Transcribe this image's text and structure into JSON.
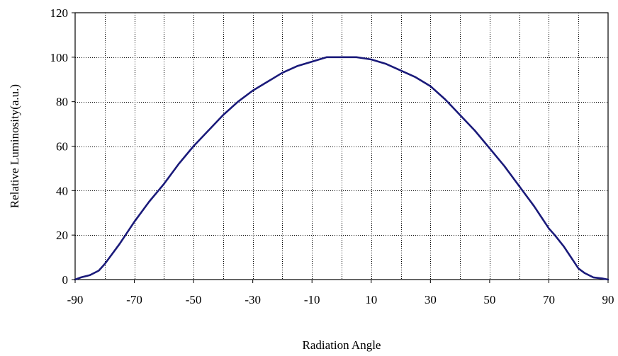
{
  "chart_data": {
    "type": "line",
    "xlabel": "Radiation Angle",
    "ylabel": "Relative Luminosity(a.u.)",
    "xlim": [
      -90,
      90
    ],
    "ylim": [
      0,
      120
    ],
    "xticks": [
      -90,
      -70,
      -50,
      -30,
      -10,
      10,
      30,
      50,
      70,
      90
    ],
    "yticks": [
      0,
      20,
      40,
      60,
      80,
      100,
      120
    ],
    "x_gridlines": [
      -90,
      -80,
      -70,
      -60,
      -50,
      -40,
      -30,
      -20,
      -10,
      0,
      10,
      20,
      30,
      40,
      50,
      60,
      70,
      80,
      90
    ],
    "grid": true,
    "legend": "none",
    "series": [
      {
        "color": "#1a1a7a",
        "x": [
          -90,
          -88,
          -85,
          -82,
          -80,
          -75,
          -70,
          -65,
          -60,
          -55,
          -50,
          -45,
          -40,
          -35,
          -30,
          -25,
          -20,
          -15,
          -10,
          -5,
          0,
          5,
          10,
          15,
          20,
          25,
          30,
          35,
          40,
          45,
          50,
          55,
          60,
          65,
          70,
          72,
          75,
          80,
          82,
          85,
          88,
          90
        ],
        "values": [
          0,
          1,
          2,
          4,
          7,
          16,
          26,
          35,
          43,
          52,
          60,
          67,
          74,
          80,
          85,
          89,
          93,
          96,
          98,
          100,
          100,
          100,
          99,
          97,
          94,
          91,
          87,
          81,
          74,
          67,
          59,
          51,
          42,
          33,
          23,
          20,
          15,
          5,
          3,
          1,
          0.5,
          0
        ]
      }
    ]
  }
}
